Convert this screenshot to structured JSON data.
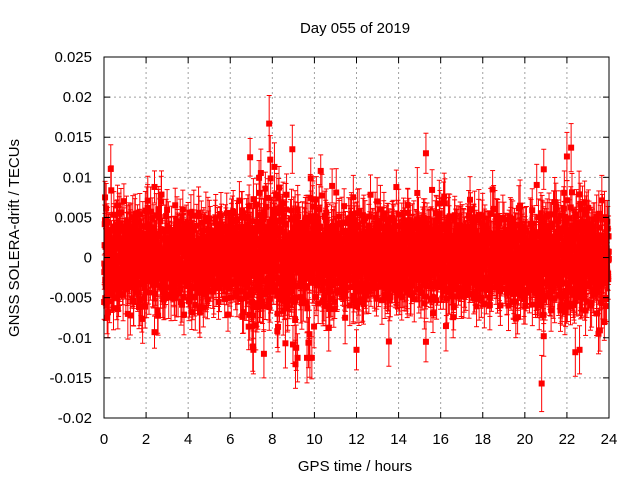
{
  "chart_data": {
    "type": "scatter",
    "title": "Day 055 of 2019",
    "xlabel": "GPS time / hours",
    "ylabel": "GNSS SOLERA-drift / TECUs",
    "xlim": [
      0,
      24
    ],
    "ylim": [
      -0.02,
      0.025
    ],
    "xticks": [
      0,
      2,
      4,
      6,
      8,
      10,
      12,
      14,
      16,
      18,
      20,
      22,
      24
    ],
    "xtick_labels": [
      "0",
      "2",
      "4",
      "6",
      "8",
      "10",
      "12",
      "14",
      "16",
      "18",
      "20",
      "22",
      "24"
    ],
    "yticks": [
      -0.02,
      -0.015,
      -0.01,
      -0.005,
      0,
      0.005,
      0.01,
      0.015,
      0.02,
      0.025
    ],
    "ytick_labels": [
      "-0.02",
      "-0.015",
      "-0.01",
      "-0.005",
      "0",
      "0.005",
      "0.01",
      "0.015",
      "0.02",
      "0.025"
    ],
    "grid": true,
    "marker": "filled square with vertical error bars",
    "color": "#ff0000",
    "approx_points": 3200,
    "typical_error": 0.0025,
    "series": [
      {
        "name": "SOLERA-drift",
        "notable_points": [
          {
            "x": 7.85,
            "y": 0.0167,
            "err": 0.0035
          },
          {
            "x": 7.9,
            "y": 0.0122,
            "err": 0.003
          },
          {
            "x": 8.95,
            "y": 0.0135,
            "err": 0.003
          },
          {
            "x": 8.1,
            "y": 0.0113,
            "err": 0.003
          },
          {
            "x": 10.3,
            "y": 0.0108,
            "err": 0.002
          },
          {
            "x": 15.3,
            "y": 0.013,
            "err": 0.0025
          },
          {
            "x": 22.2,
            "y": 0.0137,
            "err": 0.003
          },
          {
            "x": 22.0,
            "y": 0.0126,
            "err": 0.003
          },
          {
            "x": 20.8,
            "y": -0.0157,
            "err": 0.0035
          },
          {
            "x": 9.1,
            "y": -0.0133,
            "err": 0.003
          },
          {
            "x": 9.2,
            "y": -0.0125,
            "err": 0.003
          },
          {
            "x": 7.6,
            "y": -0.012,
            "err": 0.003
          },
          {
            "x": 7.1,
            "y": -0.0115,
            "err": 0.003
          },
          {
            "x": 22.4,
            "y": -0.0118,
            "err": 0.003
          },
          {
            "x": 22.6,
            "y": -0.0115,
            "err": 0.003
          },
          {
            "x": 15.3,
            "y": -0.0105,
            "err": 0.0025
          },
          {
            "x": 0.15,
            "y": -0.0075,
            "err": 0.002
          },
          {
            "x": 0.05,
            "y": 0.0075,
            "err": 0.002
          },
          {
            "x": 2.4,
            "y": 0.0088,
            "err": 0.002
          },
          {
            "x": 2.4,
            "y": -0.0093,
            "err": 0.002
          },
          {
            "x": 12.0,
            "y": -0.0115,
            "err": 0.0025
          },
          {
            "x": 23.5,
            "y": -0.0095,
            "err": 0.0025
          },
          {
            "x": 20.9,
            "y": -0.0098,
            "err": 0.0025
          },
          {
            "x": 20.9,
            "y": 0.011,
            "err": 0.0025
          }
        ]
      }
    ]
  }
}
